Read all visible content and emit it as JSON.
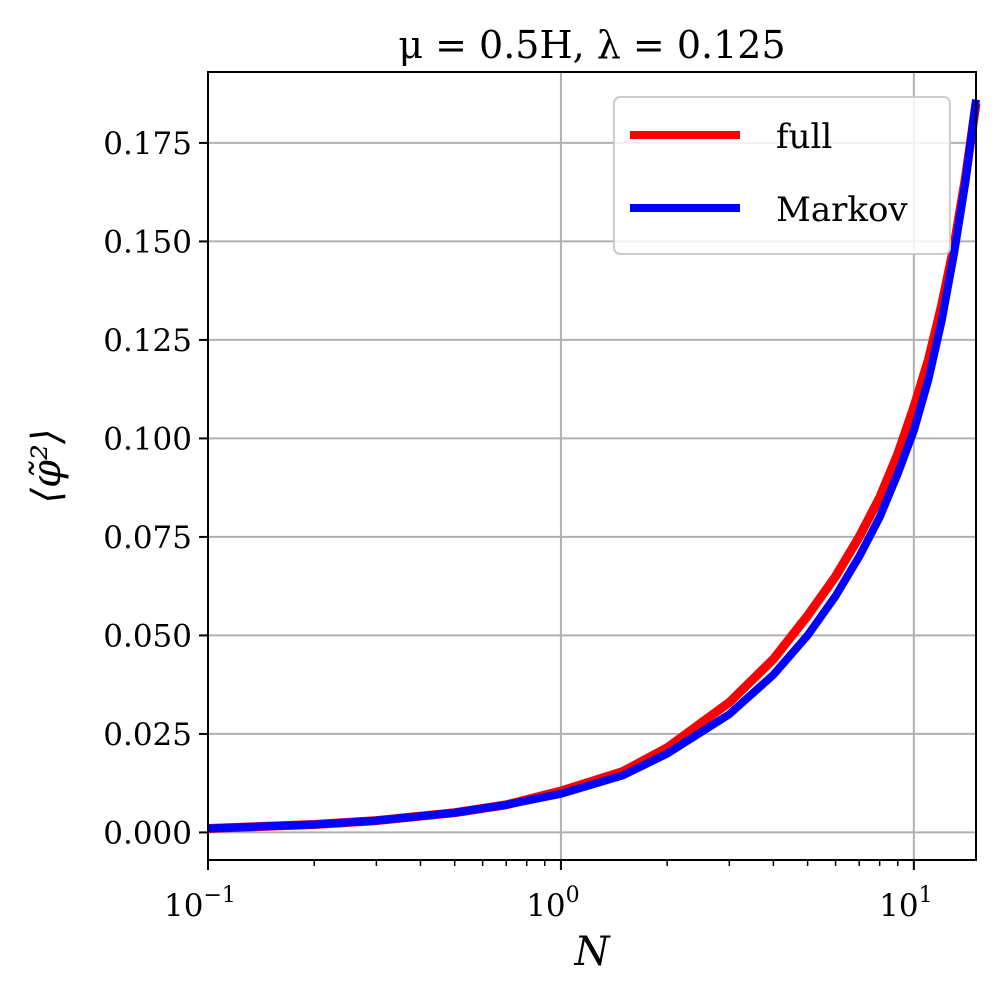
{
  "chart_data": {
    "type": "line",
    "title": "μ = 0.5H,  λ = 0.125",
    "xlabel": "N",
    "ylabel": "⟨φ̃²⟩",
    "xscale": "log",
    "xlim": [
      0.1,
      15
    ],
    "ylim": [
      -0.007,
      0.193
    ],
    "grid": true,
    "legend_position": "top-right",
    "x_ticks": [
      {
        "value": 0.1,
        "base": "10",
        "exp": "−1"
      },
      {
        "value": 1,
        "base": "10",
        "exp": "0"
      },
      {
        "value": 10,
        "base": "10",
        "exp": "1"
      }
    ],
    "y_ticks": [
      {
        "value": 0.0,
        "label": "0.000"
      },
      {
        "value": 0.025,
        "label": "0.025"
      },
      {
        "value": 0.05,
        "label": "0.050"
      },
      {
        "value": 0.075,
        "label": "0.075"
      },
      {
        "value": 0.1,
        "label": "0.100"
      },
      {
        "value": 0.125,
        "label": "0.125"
      },
      {
        "value": 0.15,
        "label": "0.150"
      },
      {
        "value": 0.175,
        "label": "0.175"
      }
    ],
    "series": [
      {
        "name": "full",
        "color": "#ff0000",
        "x": [
          0.1,
          0.2,
          0.3,
          0.5,
          0.7,
          1,
          1.5,
          2,
          3,
          4,
          5,
          6,
          7,
          8,
          9,
          10,
          11,
          12,
          13,
          14,
          15
        ],
        "y": [
          0.001,
          0.002,
          0.003,
          0.005,
          0.007,
          0.0105,
          0.0155,
          0.0215,
          0.033,
          0.044,
          0.055,
          0.065,
          0.075,
          0.085,
          0.096,
          0.108,
          0.12,
          0.134,
          0.149,
          0.166,
          0.185
        ]
      },
      {
        "name": "Markov",
        "color": "#0000ff",
        "x": [
          0.1,
          0.2,
          0.3,
          0.5,
          0.7,
          1,
          1.5,
          2,
          3,
          4,
          5,
          6,
          7,
          8,
          9,
          10,
          11,
          12,
          13,
          14,
          15
        ],
        "y": [
          0.001,
          0.002,
          0.003,
          0.005,
          0.007,
          0.0098,
          0.0145,
          0.02,
          0.03,
          0.04,
          0.05,
          0.06,
          0.07,
          0.08,
          0.091,
          0.102,
          0.115,
          0.13,
          0.147,
          0.165,
          0.186
        ]
      }
    ]
  }
}
